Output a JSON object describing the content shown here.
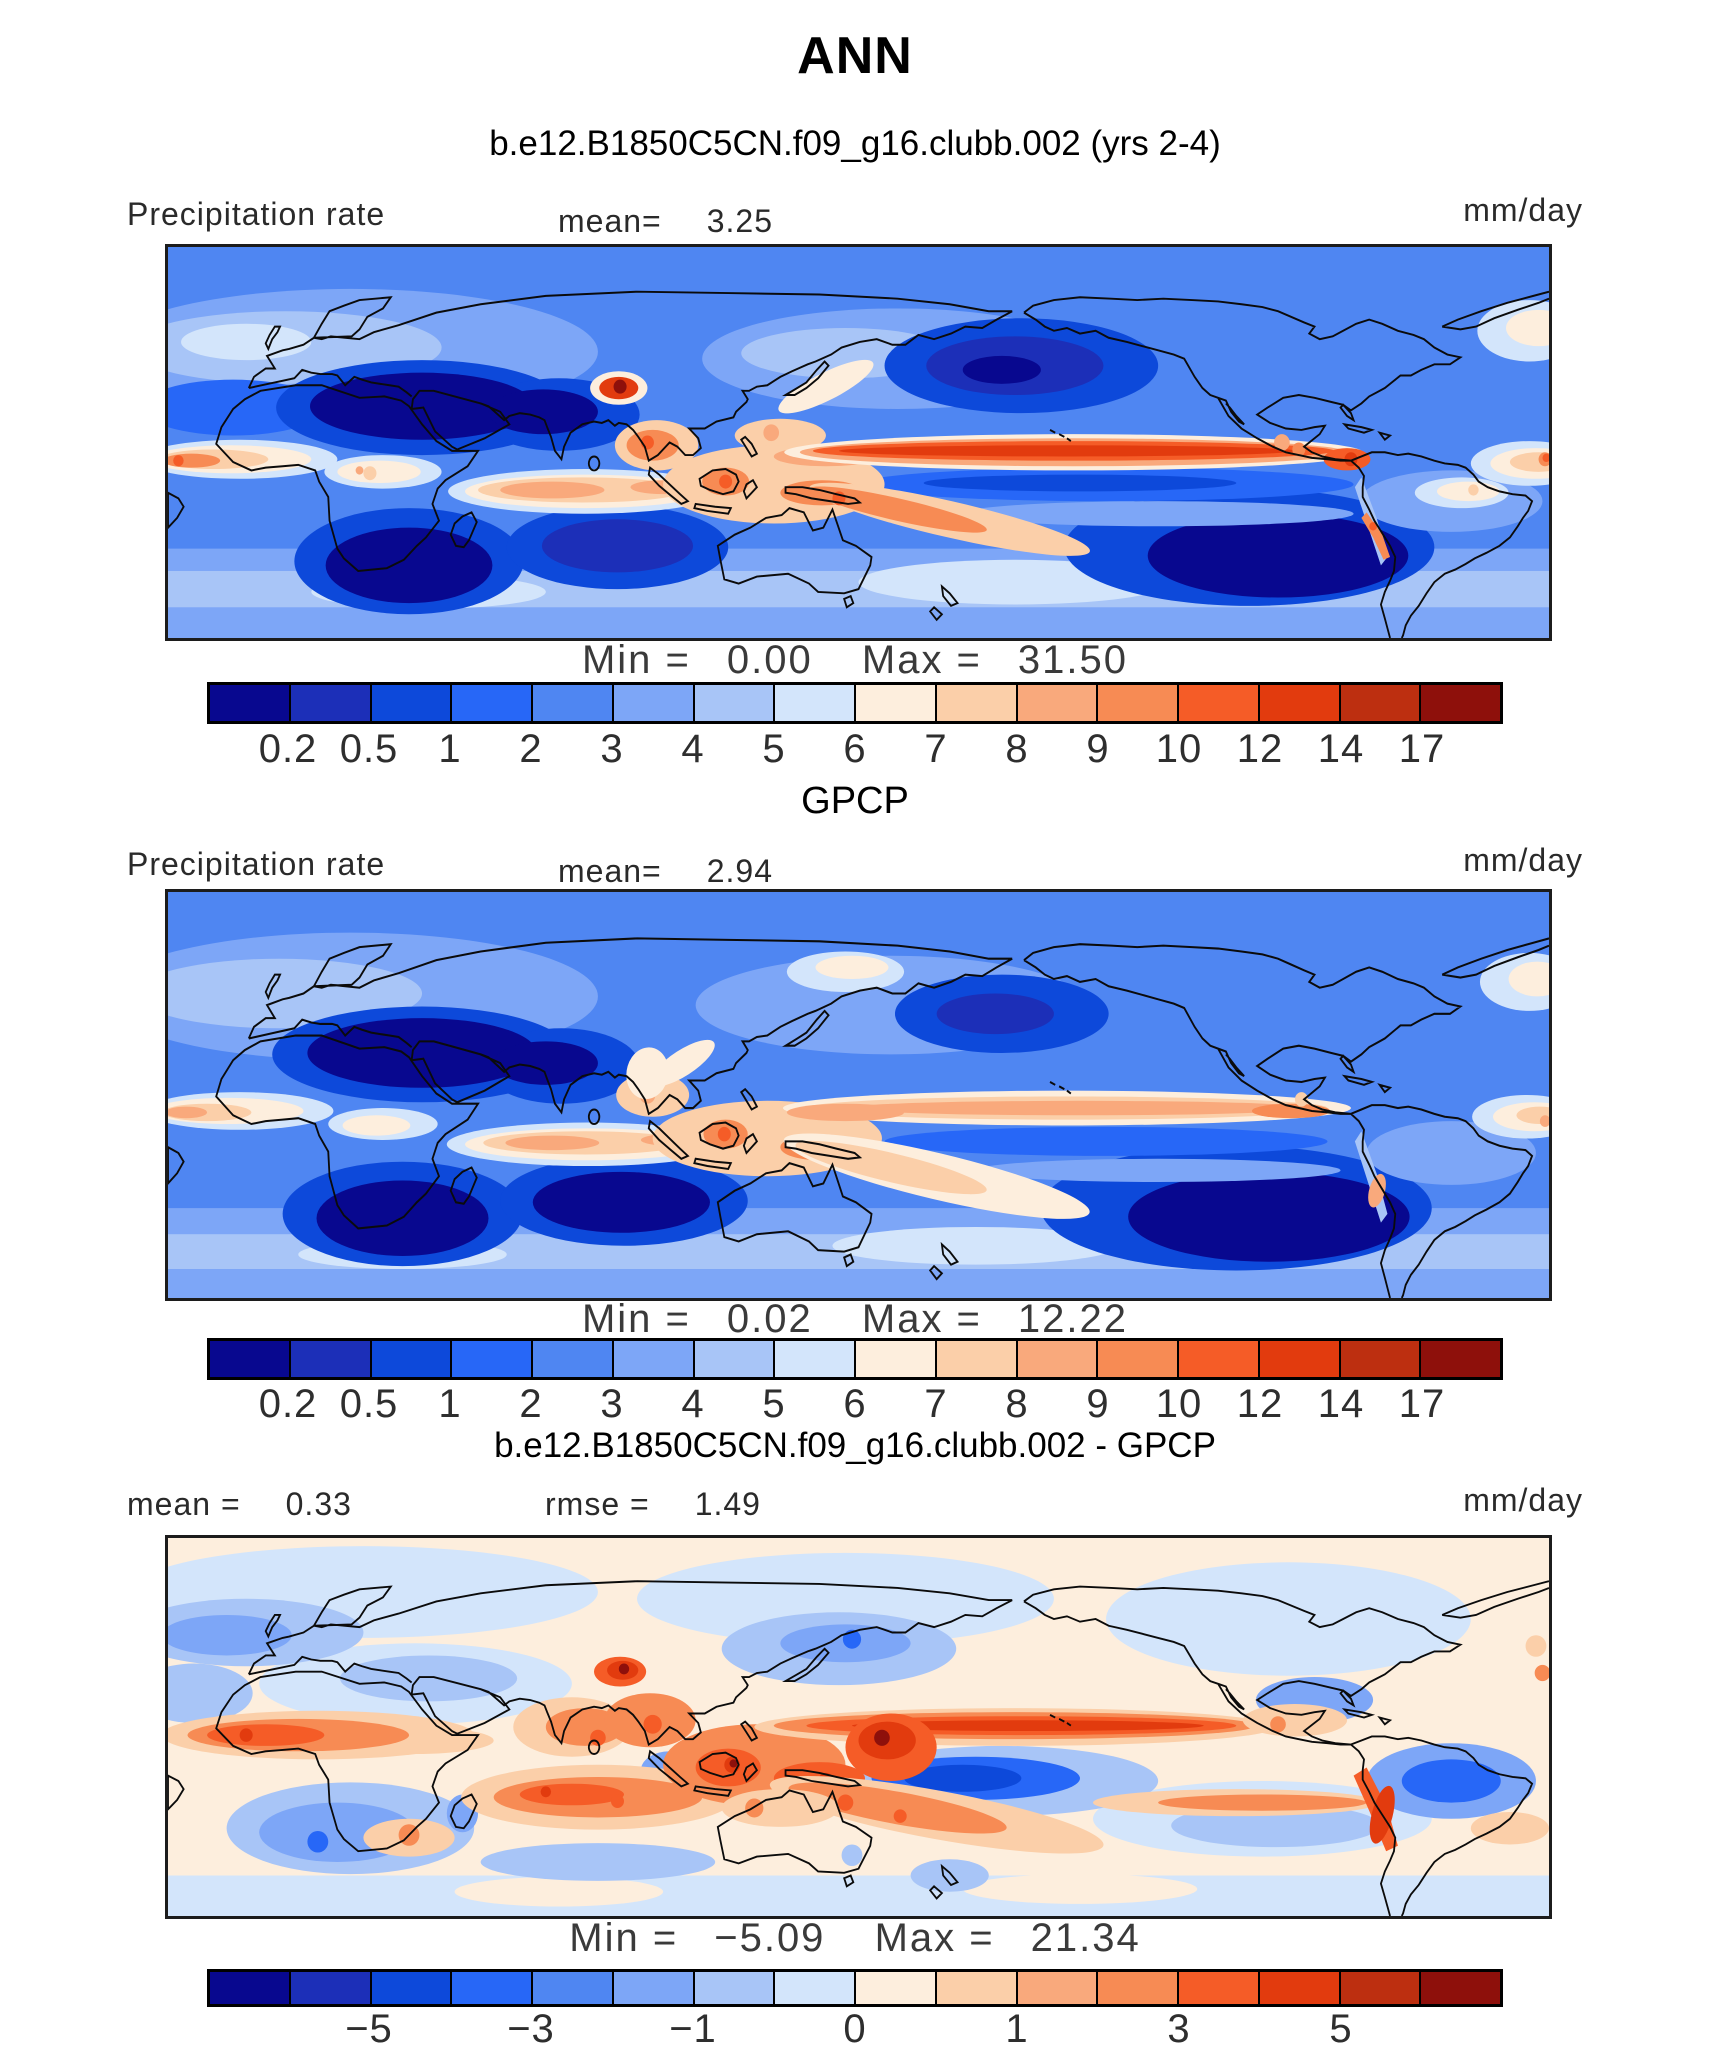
{
  "title": "ANN",
  "subtitle": "b.e12.B1850C5CN.f09_g16.clubb.002 (yrs 2-4)",
  "palette": [
    "#08088f",
    "#1c2fb8",
    "#0d49da",
    "#2767f7",
    "#4f86f2",
    "#7da6f7",
    "#a8c5f7",
    "#d3e5fb",
    "#fdeedd",
    "#fbcfa9",
    "#f9a97c",
    "#f78b54",
    "#f55c27",
    "#e23b0e",
    "#bd2f10",
    "#8e100b"
  ],
  "panels": [
    {
      "name": "model",
      "field_label": "Precipitation rate",
      "stat_label": "mean=",
      "stat_value": "3.25",
      "units": "mm/day",
      "min_label": "Min =",
      "min_value": "0.00",
      "max_label": "Max =",
      "max_value": "31.50",
      "colorbar": {
        "tick_labels": [
          "0.2",
          "0.5",
          "1",
          "2",
          "3",
          "4",
          "5",
          "6",
          "7",
          "8",
          "9",
          "10",
          "12",
          "14",
          "17"
        ],
        "tick_boundaries": [
          1,
          2,
          3,
          4,
          5,
          6,
          7,
          8,
          9,
          10,
          11,
          12,
          13,
          14,
          15
        ]
      }
    },
    {
      "name": "observations",
      "title": "GPCP",
      "field_label": "Precipitation rate",
      "stat_label": "mean=",
      "stat_value": "2.94",
      "units": "mm/day",
      "min_label": "Min =",
      "min_value": "0.02",
      "max_label": "Max =",
      "max_value": "12.22",
      "colorbar": {
        "tick_labels": [
          "0.2",
          "0.5",
          "1",
          "2",
          "3",
          "4",
          "5",
          "6",
          "7",
          "8",
          "9",
          "10",
          "12",
          "14",
          "17"
        ],
        "tick_boundaries": [
          1,
          2,
          3,
          4,
          5,
          6,
          7,
          8,
          9,
          10,
          11,
          12,
          13,
          14,
          15
        ]
      }
    },
    {
      "name": "difference",
      "title": "b.e12.B1850C5CN.f09_g16.clubb.002 - GPCP",
      "stat1_label": "mean =",
      "stat1_value": "0.33",
      "stat2_label": "rmse =",
      "stat2_value": "1.49",
      "units": "mm/day",
      "min_label": "Min =",
      "min_value": "−5.09",
      "max_label": "Max =",
      "max_value": "21.34",
      "colorbar": {
        "tick_labels": [
          "−5",
          "−3",
          "−1",
          "0",
          "1",
          "3",
          "5"
        ],
        "tick_boundaries": [
          2,
          4,
          6,
          8,
          10,
          12,
          14
        ]
      }
    }
  ],
  "chart_data": [
    {
      "type": "heatmap",
      "panel": "model",
      "title": "b.e12.B1850C5CN.f09_g16.clubb.002 (yrs 2-4)",
      "variable": "Precipitation rate",
      "units": "mm/day",
      "mean": 3.25,
      "min": 0.0,
      "max": 31.5,
      "contour_levels": [
        0.2,
        0.5,
        1,
        2,
        3,
        4,
        5,
        6,
        7,
        8,
        9,
        10,
        12,
        14,
        17
      ],
      "legend_position": "bottom",
      "notes": "Global filled-contour map, blue low precipitation over subtropics (Sahara, S Atlantic, SE Pacific), orange/red ITCZ band across tropical Pacific, warm pool over Indonesia, red maximum near Himalayas"
    },
    {
      "type": "heatmap",
      "panel": "observations",
      "title": "GPCP",
      "variable": "Precipitation rate",
      "units": "mm/day",
      "mean": 2.94,
      "min": 0.02,
      "max": 12.22,
      "contour_levels": [
        0.2,
        0.5,
        1,
        2,
        3,
        4,
        5,
        6,
        7,
        8,
        9,
        10,
        12,
        14,
        17
      ],
      "legend_position": "bottom",
      "notes": "Observed GPCP precipitation, smoother and weaker ITCZ/SPCZ bands than model"
    },
    {
      "type": "heatmap",
      "panel": "difference",
      "title": "b.e12.B1850C5CN.f09_g16.clubb.002 - GPCP",
      "variable": "Precipitation rate difference",
      "units": "mm/day",
      "mean": 0.33,
      "rmse": 1.49,
      "min": -5.09,
      "max": 21.34,
      "labeled_levels": [
        -5,
        -3,
        -1,
        0,
        1,
        3,
        5
      ],
      "legend_position": "bottom",
      "notes": "Model minus observations: wet bias (orange/red) along Atlantic and Pacific ITCZ, Indian Ocean, Indonesia, Tibet and Peru coast; dry bias (blue) over Amazon, west Pacific equator and N Atlantic"
    }
  ]
}
